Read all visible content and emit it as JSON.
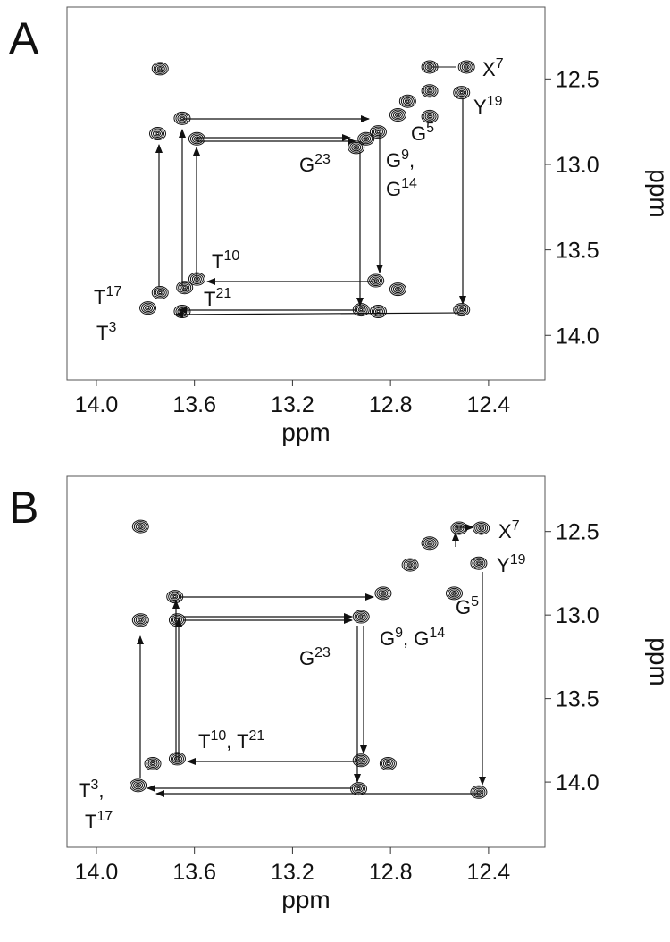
{
  "chart_data": [
    {
      "type": "nmr",
      "panel": "A",
      "xlabel": "ppm",
      "ylabel": "ppm",
      "xlim": [
        14.12,
        12.17
      ],
      "ylim": [
        12.08,
        14.26
      ],
      "xticks": [
        {
          "value": 14,
          "label": "14.0"
        },
        13.6,
        13.2,
        12.8,
        12.4
      ],
      "yticks": [
        12.5,
        {
          "value": 13,
          "label": "13.0"
        },
        13.5,
        {
          "value": 14,
          "label": "14.0"
        }
      ],
      "color": "#111111",
      "peaks": {
        "x": [
          12.49,
          12.64,
          12.51,
          12.64,
          12.73,
          12.77,
          12.64,
          12.85,
          12.9,
          12.94,
          13.74,
          13.75,
          13.65,
          13.59,
          13.59,
          13.64,
          13.74,
          13.79,
          13.65,
          12.86,
          12.77,
          12.92,
          12.85,
          12.51
        ],
        "y": [
          12.43,
          12.43,
          12.58,
          12.57,
          12.63,
          12.71,
          12.72,
          12.81,
          12.85,
          12.9,
          12.44,
          12.82,
          12.73,
          12.85,
          13.67,
          13.72,
          13.75,
          13.84,
          13.86,
          13.68,
          13.73,
          13.85,
          13.86,
          13.85
        ]
      },
      "labels": [
        [
          "X",
          "7"
        ],
        [
          "Y",
          "19"
        ],
        [
          "G",
          "5"
        ],
        [
          "G",
          "23"
        ],
        [
          "G",
          "9",
          ","
        ],
        [
          "G",
          "14"
        ],
        [
          "T",
          "10"
        ],
        [
          "T",
          "21"
        ],
        [
          "T",
          "17"
        ],
        [
          "T",
          "3"
        ]
      ]
    },
    {
      "type": "nmr",
      "panel": "B",
      "xlabel": "ppm",
      "ylabel": "ppm",
      "xlim": [
        14.12,
        12.17
      ],
      "ylim": [
        12.17,
        14.39
      ],
      "xticks": [
        {
          "value": 14,
          "label": "14.0"
        },
        13.6,
        13.2,
        12.8,
        12.4
      ],
      "yticks": [
        12.5,
        {
          "value": 13,
          "label": "13.0"
        },
        13.5,
        {
          "value": 14,
          "label": "14.0"
        }
      ],
      "color": "#111111",
      "peaks": {
        "x": [
          12.43,
          12.52,
          12.64,
          12.72,
          12.44,
          12.54,
          12.83,
          12.92,
          13.82,
          13.68,
          13.67,
          13.82,
          13.77,
          13.67,
          13.83,
          12.92,
          12.81,
          12.93,
          12.44
        ],
        "y": [
          12.48,
          12.48,
          12.57,
          12.7,
          12.69,
          12.87,
          12.87,
          13.01,
          12.47,
          12.89,
          13.03,
          13.03,
          13.89,
          13.86,
          14.02,
          13.87,
          13.89,
          14.04,
          14.06
        ]
      },
      "labels": [
        [
          "X",
          "7"
        ],
        [
          "Y",
          "19"
        ],
        [
          "G",
          "5"
        ],
        [
          "G",
          "23"
        ],
        [
          "G",
          "9",
          ", G",
          "14"
        ],
        [
          "T",
          "10",
          ", T",
          "21"
        ],
        [
          "T",
          "3",
          ","
        ],
        [
          "T",
          "17"
        ]
      ]
    }
  ]
}
